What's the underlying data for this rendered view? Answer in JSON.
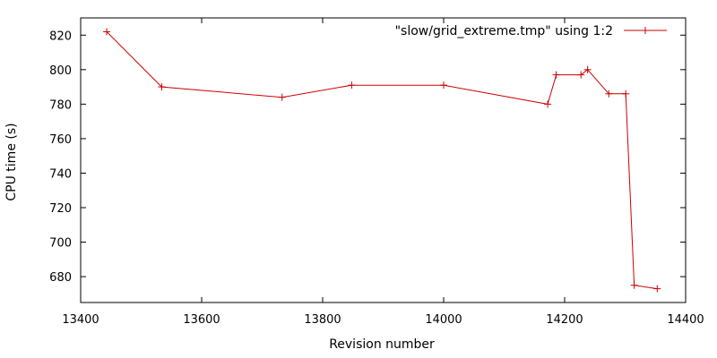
{
  "chart_data": {
    "type": "line",
    "xlabel": "Revision number",
    "ylabel": "CPU time (s)",
    "xlim": [
      13400,
      14400
    ],
    "ylim": [
      665,
      830
    ],
    "xticks": [
      13400,
      13600,
      13800,
      14000,
      14200,
      14400
    ],
    "yticks": [
      680,
      700,
      720,
      740,
      760,
      780,
      800,
      820
    ],
    "grid": false,
    "legend_position": "top-right",
    "series": [
      {
        "name": "\"slow/grid_extreme.tmp\" using 1:2",
        "color": "#cc0000",
        "marker": "plus",
        "x": [
          13443,
          13534,
          13733,
          13848,
          14000,
          14172,
          14186,
          14227,
          14238,
          14273,
          14301,
          14315,
          14353
        ],
        "y": [
          822,
          790,
          784,
          791,
          791,
          780,
          797,
          797,
          800,
          786,
          786,
          675,
          673
        ]
      }
    ]
  }
}
